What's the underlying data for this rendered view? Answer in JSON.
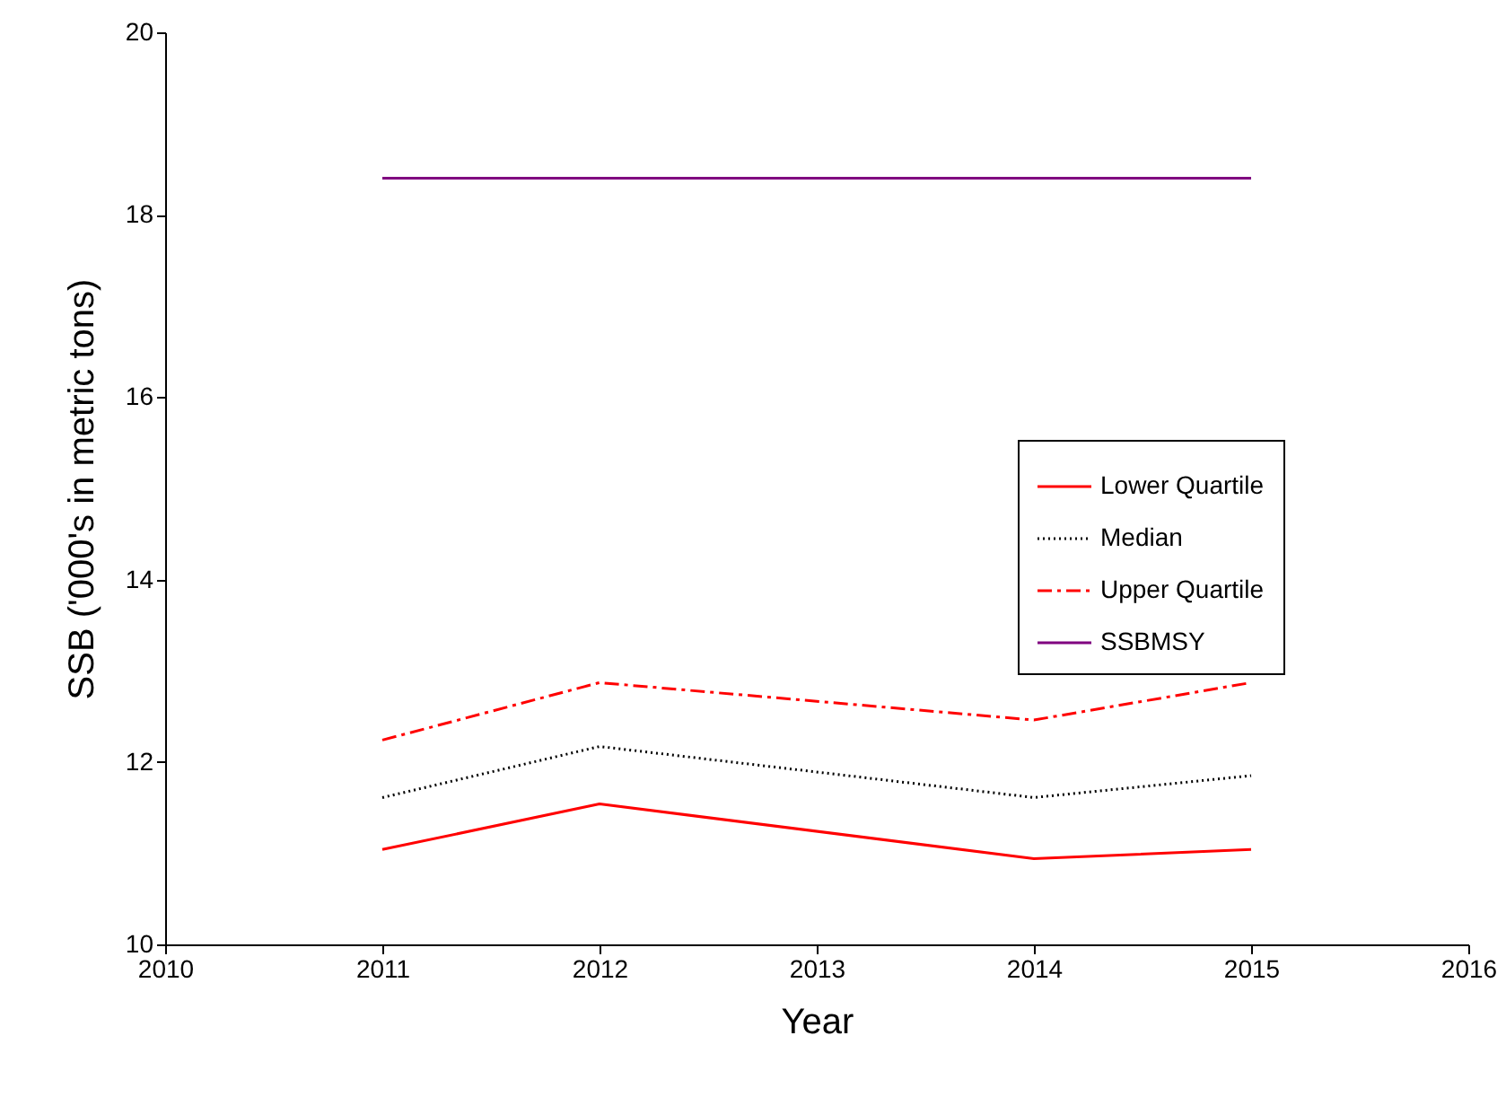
{
  "chart_data": {
    "type": "line",
    "xlabel": "Year",
    "ylabel": "SSB ('000's in metric tons)",
    "x": [
      2011,
      2012,
      2014,
      2015
    ],
    "series": [
      {
        "name": "Lower Quartile",
        "color": "#ff0000",
        "line_style": "solid",
        "values": [
          11.04,
          11.54,
          10.94,
          11.04
        ]
      },
      {
        "name": "Median",
        "color": "#000000",
        "line_style": "dotted",
        "values": [
          11.61,
          12.17,
          11.61,
          11.85
        ]
      },
      {
        "name": "Upper Quartile",
        "color": "#ff0000",
        "line_style": "dashed",
        "values": [
          12.24,
          12.87,
          12.46,
          12.87
        ]
      },
      {
        "name": "SSBMSY",
        "color": "#800080",
        "line_style": "solid",
        "values": [
          18.4,
          18.4,
          18.4,
          18.4
        ]
      }
    ],
    "xlim": [
      2010,
      2016
    ],
    "xticks": [
      2010,
      2011,
      2012,
      2013,
      2014,
      2015,
      2016
    ],
    "ylim": [
      10,
      20
    ],
    "yticks": [
      10,
      12,
      14,
      16,
      18,
      20
    ],
    "grid": false,
    "legend": "right",
    "marker": "none"
  }
}
